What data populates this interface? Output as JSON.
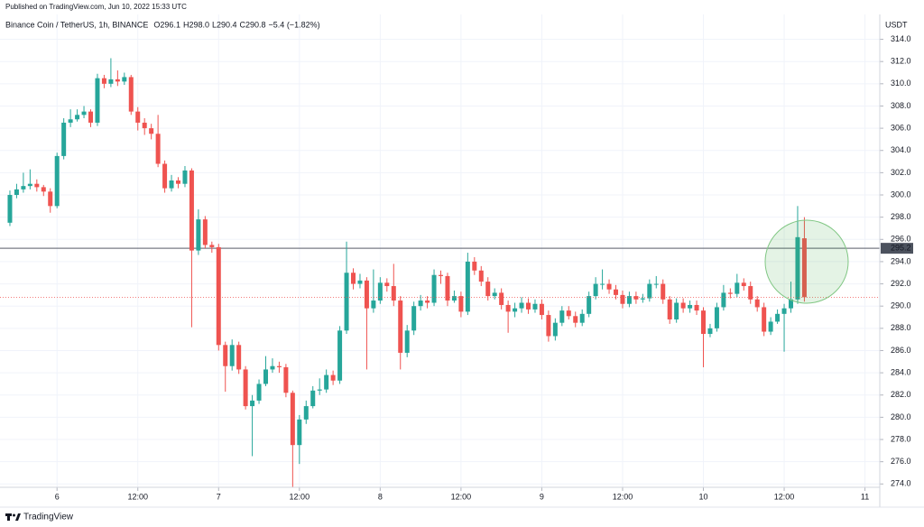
{
  "chart_data": {
    "type": "candlestick",
    "published": "Published on TradingView.com, Jun 10, 2022 15:33 UTC",
    "title": "Binance Coin / TetherUS, 1h, BINANCE",
    "ohlc_header": [
      "O296.1",
      "H298.0",
      "L290.4",
      "C290.8",
      "−5.4 (−1.82%)"
    ],
    "y_unit": "USDT",
    "footer": "TradingView",
    "up_color": "#26a69a",
    "down_color": "#ef5350",
    "open": [
      297.5,
      300.0,
      300.5,
      300.8,
      301.0,
      300.7,
      300.3,
      299.0,
      303.5,
      306.5,
      306.8,
      307.2,
      307.5,
      306.5,
      310.5,
      310.0,
      310.4,
      310.2,
      310.6,
      307.5,
      306.5,
      306.0,
      305.5,
      302.8,
      300.6,
      301.3,
      301.0,
      302.2,
      295.0,
      297.8,
      295.5,
      295.3,
      286.5,
      284.6,
      286.5,
      284.3,
      281.0,
      281.5,
      283.0,
      284.3,
      284.6,
      284.5,
      282.2,
      277.5,
      279.8,
      281.0,
      282.4,
      282.5,
      283.8,
      283.3,
      287.8,
      293.0,
      292.0,
      292.3,
      289.8,
      290.5,
      292.1,
      291.8,
      290.5,
      285.8,
      287.8,
      290.0,
      290.5,
      290.3,
      292.8,
      292.7,
      290.5,
      290.9,
      289.5,
      294.0,
      293.2,
      292.2,
      290.9,
      291.2,
      290.1,
      289.5,
      289.8,
      290.3,
      289.7,
      290.2,
      289.2,
      287.3,
      288.5,
      289.6,
      289.1,
      288.5,
      289.3,
      290.9,
      292.0,
      292.0,
      291.5,
      291.0,
      290.2,
      290.9,
      290.6,
      290.7,
      292.0,
      292.0,
      290.6,
      288.8,
      290.3,
      289.8,
      290.1,
      289.6,
      287.5,
      288.0,
      289.9,
      291.2,
      291.1,
      292.1,
      291.8,
      290.6,
      289.9,
      287.7,
      288.6,
      289.3,
      289.8,
      290.6,
      296.1
    ],
    "high": [
      300.4,
      301.0,
      302.0,
      302.3,
      301.4,
      300.9,
      300.6,
      303.8,
      306.9,
      307.7,
      307.7,
      308.0,
      307.7,
      310.9,
      310.8,
      312.3,
      311.2,
      311.0,
      310.8,
      307.9,
      306.9,
      306.4,
      307.2,
      303.1,
      301.8,
      301.6,
      302.6,
      302.4,
      298.7,
      298.1,
      295.8,
      295.6,
      286.8,
      287.0,
      286.8,
      284.6,
      282.0,
      283.4,
      285.5,
      285.3,
      285.0,
      284.8,
      282.4,
      280.2,
      281.5,
      282.8,
      283.5,
      284.3,
      284.2,
      288.2,
      295.8,
      293.4,
      292.9,
      292.6,
      293.3,
      292.6,
      292.5,
      293.8,
      290.9,
      288.3,
      290.4,
      291.0,
      290.9,
      293.3,
      293.2,
      293.0,
      291.4,
      291.3,
      294.8,
      294.4,
      293.6,
      292.6,
      291.6,
      291.6,
      290.5,
      290.3,
      290.8,
      290.7,
      290.6,
      290.6,
      289.6,
      288.9,
      290.0,
      290.0,
      289.5,
      289.7,
      291.3,
      292.6,
      293.3,
      292.4,
      291.9,
      291.4,
      291.3,
      291.3,
      291.1,
      292.4,
      292.7,
      292.4,
      290.9,
      290.7,
      290.7,
      290.5,
      290.5,
      289.9,
      288.4,
      290.3,
      291.9,
      291.6,
      292.9,
      292.5,
      292.2,
      290.9,
      290.3,
      289.0,
      289.7,
      290.2,
      292.2,
      299.0,
      298.0
    ],
    "low": [
      297.2,
      299.7,
      300.2,
      300.5,
      300.3,
      299.9,
      298.4,
      298.8,
      303.2,
      306.1,
      306.6,
      306.9,
      306.1,
      306.2,
      309.6,
      309.7,
      309.8,
      309.9,
      307.2,
      305.8,
      305.4,
      305.0,
      302.5,
      300.2,
      300.3,
      300.6,
      300.7,
      288.1,
      294.6,
      295.2,
      294.8,
      286.0,
      282.3,
      284.2,
      283.9,
      280.7,
      276.5,
      281.2,
      282.8,
      284.0,
      284.0,
      281.8,
      273.7,
      275.8,
      279.4,
      280.8,
      282.0,
      282.2,
      282.9,
      283.0,
      287.5,
      291.5,
      291.6,
      284.3,
      289.4,
      290.2,
      291.3,
      290.0,
      284.3,
      285.4,
      287.4,
      289.6,
      289.8,
      290.0,
      292.0,
      290.0,
      290.3,
      289.0,
      289.2,
      292.8,
      291.8,
      290.5,
      290.6,
      289.7,
      287.6,
      289.0,
      289.4,
      289.3,
      289.4,
      288.8,
      286.8,
      286.9,
      288.2,
      288.8,
      288.1,
      288.2,
      289.0,
      290.6,
      291.5,
      291.1,
      290.6,
      289.8,
      289.9,
      290.2,
      290.3,
      290.4,
      291.6,
      290.2,
      288.4,
      288.5,
      289.4,
      289.4,
      289.2,
      284.5,
      287.2,
      287.7,
      289.6,
      290.7,
      290.8,
      291.4,
      290.2,
      289.5,
      287.3,
      287.4,
      288.4,
      285.9,
      289.4,
      290.2,
      290.4
    ],
    "close": [
      300.0,
      300.5,
      300.8,
      301.0,
      300.7,
      300.3,
      299.0,
      303.5,
      306.5,
      306.8,
      307.2,
      307.5,
      306.5,
      310.5,
      310.0,
      310.4,
      310.2,
      310.6,
      307.5,
      306.5,
      306.0,
      305.5,
      302.8,
      300.6,
      301.3,
      301.0,
      302.2,
      295.0,
      297.8,
      295.5,
      295.3,
      286.5,
      284.6,
      286.5,
      284.3,
      281.0,
      281.5,
      283.0,
      284.3,
      284.6,
      284.5,
      282.2,
      277.5,
      279.8,
      281.0,
      282.4,
      282.5,
      283.8,
      283.3,
      287.8,
      293.0,
      292.0,
      292.3,
      289.8,
      290.5,
      292.1,
      291.8,
      290.5,
      285.8,
      287.8,
      290.0,
      290.5,
      290.3,
      292.8,
      292.7,
      290.5,
      290.9,
      289.5,
      294.0,
      293.2,
      292.2,
      290.9,
      291.2,
      290.1,
      289.5,
      289.8,
      290.3,
      289.7,
      290.2,
      289.2,
      287.3,
      288.5,
      289.6,
      289.1,
      288.5,
      289.3,
      290.9,
      292.0,
      292.0,
      291.5,
      291.0,
      290.2,
      290.9,
      290.6,
      290.7,
      292.0,
      292.0,
      290.6,
      288.8,
      290.3,
      289.8,
      290.1,
      289.6,
      287.5,
      288.0,
      289.9,
      291.2,
      291.1,
      292.1,
      291.8,
      290.6,
      289.9,
      287.7,
      288.6,
      289.3,
      289.8,
      290.6,
      296.2,
      290.8
    ],
    "xlim": [
      -0.8,
      129.2
    ],
    "xticks": [
      {
        "value": 7,
        "label": "6"
      },
      {
        "value": 19,
        "label": "12:00"
      },
      {
        "value": 31,
        "label": "7"
      },
      {
        "value": 43,
        "label": "12:00"
      },
      {
        "value": 55,
        "label": "8"
      },
      {
        "value": 67,
        "label": "12:00"
      },
      {
        "value": 79,
        "label": "9"
      },
      {
        "value": 91,
        "label": "12:00"
      },
      {
        "value": 103,
        "label": "10"
      },
      {
        "value": 115,
        "label": "12:00"
      },
      {
        "value": 127,
        "label": "11"
      }
    ],
    "ylim": [
      273.7,
      315.1
    ],
    "yticks": [
      {
        "value": 274,
        "label": "274.0"
      },
      {
        "value": 276,
        "label": "276.0"
      },
      {
        "value": 278,
        "label": "278.0"
      },
      {
        "value": 280,
        "label": "280.0"
      },
      {
        "value": 282,
        "label": "282.0"
      },
      {
        "value": 284,
        "label": "284.0"
      },
      {
        "value": 286,
        "label": "286.0"
      },
      {
        "value": 288,
        "label": "288.0"
      },
      {
        "value": 290,
        "label": "290.0"
      },
      {
        "value": 292,
        "label": "292.0"
      },
      {
        "value": 294,
        "label": "294.0"
      },
      {
        "value": 296,
        "label": "296.0"
      },
      {
        "value": 298,
        "label": "298.0"
      },
      {
        "value": 300,
        "label": "300.0"
      },
      {
        "value": 302,
        "label": "302.0"
      },
      {
        "value": 304,
        "label": "304.0"
      },
      {
        "value": 306,
        "label": "306.0"
      },
      {
        "value": 308,
        "label": "308.0"
      },
      {
        "value": 310,
        "label": "310.0"
      },
      {
        "value": 312,
        "label": "312.0"
      },
      {
        "value": 314,
        "label": "314.0"
      }
    ],
    "hline": {
      "value": 295.2,
      "label": "295.2"
    },
    "grid": true
  }
}
